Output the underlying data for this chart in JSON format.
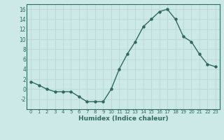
{
  "x": [
    0,
    1,
    2,
    3,
    4,
    5,
    6,
    7,
    8,
    9,
    10,
    11,
    12,
    13,
    14,
    15,
    16,
    17,
    18,
    19,
    20,
    21,
    22,
    23
  ],
  "y": [
    1.5,
    0.8,
    0.0,
    -0.5,
    -0.5,
    -0.5,
    -1.5,
    -2.5,
    -2.5,
    -2.5,
    0.0,
    4.0,
    7.0,
    9.5,
    12.5,
    14.0,
    15.5,
    16.0,
    14.0,
    10.5,
    9.5,
    7.0,
    5.0,
    4.5
  ],
  "xlabel": "Humidex (Indice chaleur)",
  "ylim": [
    -4,
    17
  ],
  "yticks": [
    -2,
    0,
    2,
    4,
    6,
    8,
    10,
    12,
    14,
    16
  ],
  "xticks": [
    0,
    1,
    2,
    3,
    4,
    5,
    6,
    7,
    8,
    9,
    10,
    11,
    12,
    13,
    14,
    15,
    16,
    17,
    18,
    19,
    20,
    21,
    22,
    23
  ],
  "line_color": "#2e6b5e",
  "bg_color": "#cce9e7",
  "grid_color": "#b8d8d5",
  "grid_minor_color": "#c8e2df"
}
